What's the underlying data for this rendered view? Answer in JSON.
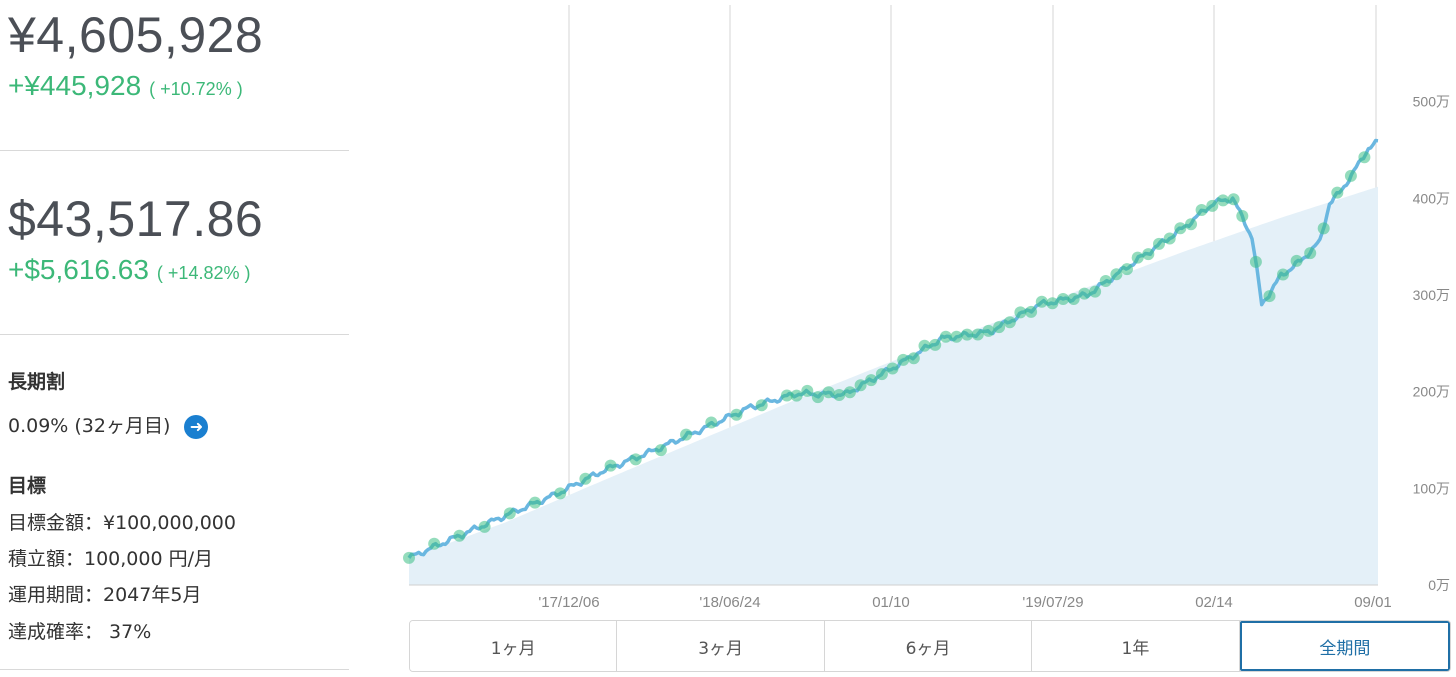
{
  "summary": {
    "jpy_total": "¥4,605,928",
    "jpy_change": "+¥445,928",
    "jpy_change_pct": "( +10.72% )",
    "usd_total": "$43,517.86",
    "usd_change": "+$5,616.63",
    "usd_change_pct": "( +14.82% )"
  },
  "long_term_discount": {
    "title": "長期割",
    "value": "0.09% (32ヶ月目)",
    "arrow_icon": "arrow-right-icon"
  },
  "goal": {
    "title": "目標",
    "lines": [
      "目標金額：¥100,000,000",
      "積立額：100,000 円/月",
      "運用期間：2047年5月",
      "達成確率： 37%"
    ]
  },
  "period_tabs": {
    "items": [
      "1ヶ月",
      "3ヶ月",
      "6ヶ月",
      "1年",
      "全期間"
    ],
    "active_index": 4
  },
  "colors": {
    "positive": "#3cb878",
    "line": "#6ab7e0",
    "area": "#e4f0f8",
    "marker": "#3cbf85",
    "active_tab": "#1f6fa6",
    "arrow_button": "#1a7fd0"
  },
  "chart_data": {
    "type": "line",
    "x_tick_labels": [
      "'17/12/06",
      "'18/06/24",
      "01/10",
      "'19/07/29",
      "02/14",
      "09/01"
    ],
    "y_tick_labels": [
      "0万",
      "100万",
      "200万",
      "300万",
      "400万",
      "500万"
    ],
    "ylim": [
      0,
      600
    ],
    "y_unit": "万円",
    "series": [
      {
        "role": "valuation",
        "x_index": [
          0,
          5,
          10,
          15,
          20,
          25,
          30,
          35,
          40,
          45,
          50,
          55,
          60,
          65,
          70,
          75,
          80,
          83,
          85,
          87,
          88,
          90,
          92,
          94,
          95,
          96,
          97,
          98,
          99,
          100
        ],
        "values": [
          28,
          50,
          72,
          93,
          118,
          138,
          160,
          183,
          198,
          197,
          225,
          255,
          262,
          290,
          300,
          335,
          370,
          395,
          400,
          360,
          290,
          320,
          335,
          355,
          395,
          405,
          420,
          435,
          452,
          458
        ]
      },
      {
        "role": "contributions",
        "x_index": [
          0,
          10,
          20,
          30,
          40,
          50,
          60,
          70,
          80,
          90,
          100
        ],
        "values": [
          28,
          65,
          108,
          150,
          192,
          232,
          270,
          308,
          345,
          380,
          412
        ]
      }
    ]
  }
}
